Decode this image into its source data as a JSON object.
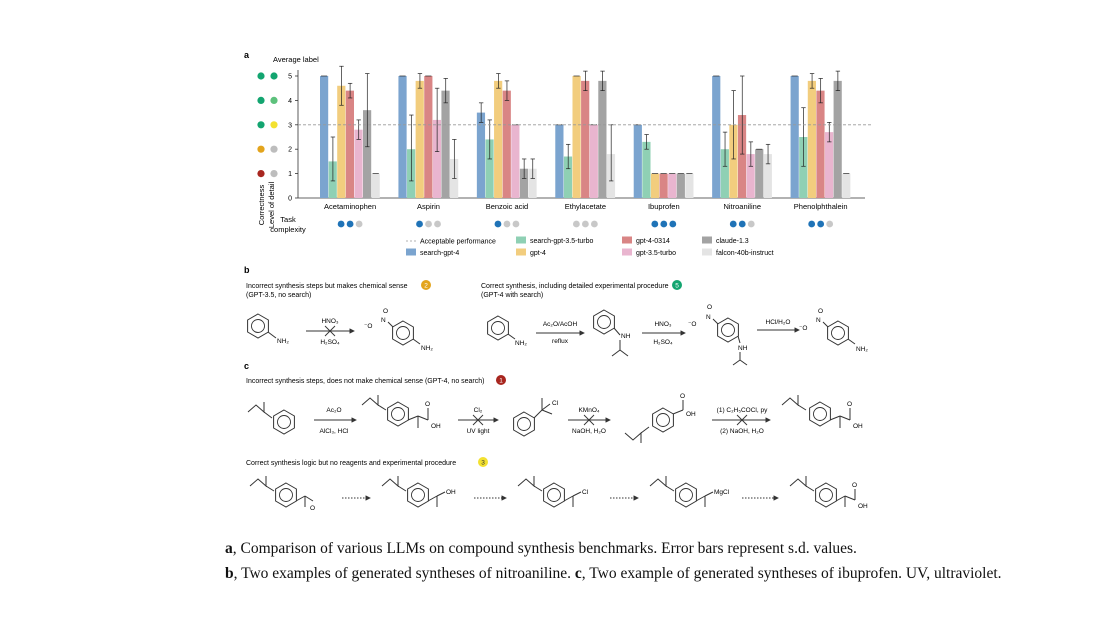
{
  "chart_data": {
    "type": "bar",
    "panel_label": "a",
    "title": "",
    "y_axis_label_top": "Average label",
    "ylabel_lines": [
      "Correctness",
      "Level of detail"
    ],
    "yticks": [
      0,
      1,
      2,
      3,
      4,
      5
    ],
    "ylim": [
      0,
      5.5
    ],
    "reference_line": {
      "value": 3,
      "label": "Acceptable performance",
      "style": "dashed"
    },
    "categories": [
      "Acetaminophen",
      "Aspirin",
      "Benzoic acid",
      "Ethylacetate",
      "Ibuprofen",
      "Nitroaniline",
      "Phenolphthalein"
    ],
    "task_complexity_label": [
      "Task",
      "complexity"
    ],
    "task_complexity": [
      2,
      1,
      1,
      0,
      3,
      2,
      2
    ],
    "series": [
      {
        "name": "search-gpt-4",
        "color": "#7ba4cf",
        "values": [
          5.0,
          5.0,
          3.5,
          3.0,
          3.0,
          5.0,
          5.0
        ],
        "err": [
          0,
          0,
          0.4,
          0,
          0,
          0,
          0
        ]
      },
      {
        "name": "search-gpt-3.5-turbo",
        "color": "#8fd0b4",
        "values": [
          1.5,
          2.0,
          2.4,
          1.7,
          2.3,
          2.0,
          2.5
        ],
        "err": [
          1.0,
          1.4,
          0.8,
          0.5,
          0.3,
          0.7,
          1.2
        ]
      },
      {
        "name": "gpt-4",
        "color": "#f2cd7e",
        "values": [
          4.6,
          4.8,
          4.8,
          5.0,
          1.0,
          3.0,
          4.8
        ],
        "err": [
          0.8,
          0.3,
          0.3,
          0,
          0,
          1.4,
          0.3
        ]
      },
      {
        "name": "gpt-4-0314",
        "color": "#d98585",
        "values": [
          4.4,
          5.0,
          4.4,
          4.8,
          1.0,
          3.4,
          4.4
        ],
        "err": [
          0.3,
          0,
          0.4,
          0.4,
          0,
          1.6,
          0.5
        ]
      },
      {
        "name": "gpt-3.5-turbo",
        "color": "#e9b5cf",
        "values": [
          2.8,
          3.2,
          3.0,
          3.0,
          1.0,
          1.8,
          2.7
        ],
        "err": [
          0.4,
          1.3,
          0,
          0,
          0,
          0.5,
          0.4
        ]
      },
      {
        "name": "claude-1.3",
        "color": "#a3a3a3",
        "values": [
          3.6,
          4.4,
          1.2,
          4.8,
          1.0,
          2.0,
          4.8
        ],
        "err": [
          1.5,
          0.5,
          0.4,
          0.4,
          0,
          0,
          0.4
        ]
      },
      {
        "name": "falcon-40b-instruct",
        "color": "#e4e4e4",
        "values": [
          1.0,
          1.6,
          1.2,
          1.8,
          1.0,
          1.8,
          1.0
        ],
        "err": [
          0,
          0.8,
          0.4,
          1.2,
          0,
          0.4,
          0
        ]
      }
    ],
    "label_key": [
      {
        "left": "#13a570",
        "right": "#13a570",
        "level": 5
      },
      {
        "left": "#13a570",
        "right": "#5dc17c",
        "level": 4
      },
      {
        "left": "#13a570",
        "right": "#f3e130",
        "level": 3
      },
      {
        "left": "#e3a41c",
        "right": "#bdbdbd",
        "level": 2
      },
      {
        "left": "#a8261f",
        "right": "#bdbdbd",
        "level": 1
      }
    ]
  },
  "panel_b": {
    "label": "b",
    "left_title": "Incorrect synthesis steps but makes chemical sense",
    "left_subtitle": "(GPT-3.5, no search)",
    "left_badge": "2",
    "left_badge_color": "#e3a41c",
    "left_reagent_top": "HNO₃",
    "left_reagent_bottom": "H₂SO₄",
    "right_title": "Correct synthesis, including detailed experimental procedure",
    "right_subtitle": "(GPT-4 with search)",
    "right_badge": "5",
    "right_badge_color": "#13a570",
    "right_step1_top": "Ac₂O/AcOH",
    "right_step1_bottom": "reflux",
    "right_step2_top": "HNO₃",
    "right_step2_bottom": "H₂SO₄",
    "right_step3_top": "HCl/H₂O",
    "nh2": "NH₂",
    "nh": "NH",
    "no2_o": "O",
    "no2_n": "N",
    "no2_minus": "⁻O"
  },
  "panel_c": {
    "label": "c",
    "row1_title": "Incorrect synthesis steps, does not make chemical sense (GPT-4, no search)",
    "row1_badge": "1",
    "row1_badge_color": "#a8261f",
    "row1_step1_top": "Ac₂O",
    "row1_step1_bottom": "AlCl₃, HCl",
    "row1_step2_top": "Cl₂",
    "row1_step2_bottom": "UV light",
    "row1_step3_top": "KMnO₄",
    "row1_step3_bottom": "NaOH, H₂O",
    "row1_step4_top": "(1) C₂H₅COCl, py",
    "row1_step4_bottom": "(2) NaOH, H₂O",
    "row2_title": "Correct synthesis logic but no reagents and experimental procedure",
    "row2_badge": "3",
    "row2_badge_color": "#f3e130",
    "oh": "OH",
    "o": "O",
    "cl": "Cl",
    "mgcl": "MgCl"
  },
  "caption": {
    "a_label": "a",
    "a_text": ", Comparison of various LLMs on compound synthesis benchmarks. Error bars represent s.d. values.",
    "b_label": "b",
    "b_text": ", Two examples of generated syntheses of nitroaniline.",
    "c_label": "c",
    "c_text": ", Two example of generated syntheses of ibuprofen. UV, ultraviolet."
  }
}
